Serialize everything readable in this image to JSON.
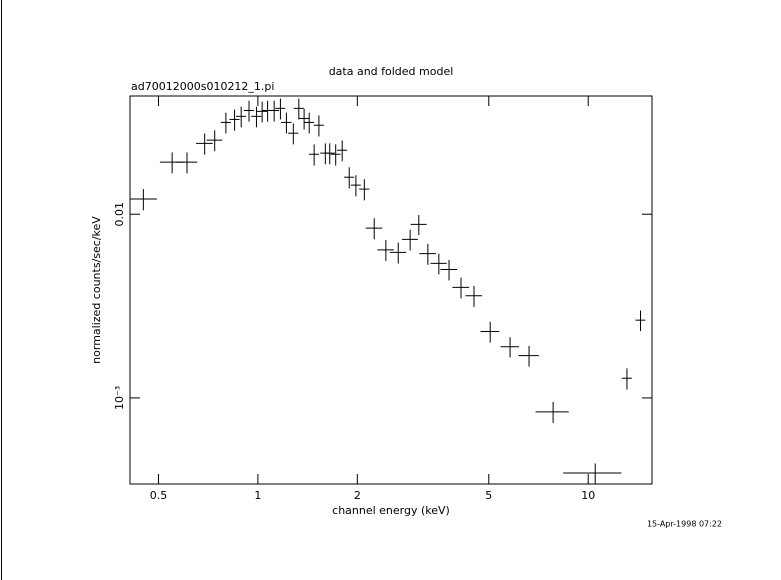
{
  "chart_data": {
    "type": "errorbar",
    "title": "data and folded model",
    "subtitle": "ad70012000s010212_1.pi",
    "x_label": "channel energy (keV)",
    "y_label": "normalized counts/sec/keV",
    "timestamp": "15-Apr-1998 07:22",
    "x_log": true,
    "y_log": true,
    "color": "#000000",
    "xlim": [
      0.41,
      15.6
    ],
    "ylim": [
      0.00034,
      0.044
    ],
    "xticks": [
      0.5,
      1,
      2,
      5,
      10
    ],
    "yticks": [
      0.01,
      {
        "value": 0.001,
        "label": "10⁻³"
      }
    ],
    "x": [
      0.45,
      0.55,
      0.61,
      0.69,
      0.74,
      0.8,
      0.85,
      0.89,
      0.94,
      0.99,
      1.03,
      1.07,
      1.12,
      1.17,
      1.22,
      1.28,
      1.33,
      1.38,
      1.43,
      1.48,
      1.53,
      1.6,
      1.65,
      1.72,
      1.8,
      1.89,
      1.98,
      2.1,
      2.25,
      2.44,
      2.66,
      2.89,
      3.07,
      3.27,
      3.53,
      3.79,
      4.12,
      4.51,
      5.05,
      5.8,
      6.62,
      7.83,
      10.5,
      13.1,
      14.4
    ],
    "xerr": [
      0.045,
      0.045,
      0.045,
      0.04,
      0.04,
      0.028,
      0.03,
      0.031,
      0.033,
      0.035,
      0.036,
      0.037,
      0.039,
      0.041,
      0.043,
      0.045,
      0.047,
      0.048,
      0.05,
      0.052,
      0.054,
      0.056,
      0.058,
      0.06,
      0.063,
      0.066,
      0.069,
      0.074,
      0.13,
      0.14,
      0.15,
      0.16,
      0.17,
      0.19,
      0.2,
      0.22,
      0.24,
      0.26,
      0.33,
      0.37,
      0.47,
      0.9,
      2.1,
      0.46,
      0.5
    ],
    "y": [
      0.0121,
      0.0192,
      0.0192,
      0.0243,
      0.0253,
      0.0316,
      0.0328,
      0.0341,
      0.0367,
      0.0341,
      0.0363,
      0.0367,
      0.0367,
      0.0377,
      0.0316,
      0.0276,
      0.0377,
      0.0332,
      0.0316,
      0.0212,
      0.0305,
      0.0215,
      0.0215,
      0.0212,
      0.0223,
      0.0159,
      0.0144,
      0.0137,
      0.0084,
      0.0064,
      0.0062,
      0.0073,
      0.0088,
      0.0061,
      0.0054,
      0.005,
      0.004,
      0.0036,
      0.0023,
      0.0019,
      0.0017,
      0.00084,
      0.00039,
      0.00128,
      0.00265
    ],
    "yerr": [
      0.0016,
      0.0025,
      0.0025,
      0.0032,
      0.0033,
      0.0041,
      0.0043,
      0.0044,
      0.0048,
      0.0044,
      0.0047,
      0.0048,
      0.0048,
      0.0049,
      0.0041,
      0.0036,
      0.0049,
      0.0043,
      0.0041,
      0.0028,
      0.004,
      0.0028,
      0.0028,
      0.0028,
      0.0029,
      0.0021,
      0.0019,
      0.0018,
      0.0011,
      0.00083,
      0.00081,
      0.00095,
      0.0011,
      0.0008,
      0.0007,
      0.00064,
      0.00052,
      0.00047,
      0.0003,
      0.00024,
      0.00022,
      0.00011,
      5e-05,
      0.00017,
      0.00034
    ]
  }
}
